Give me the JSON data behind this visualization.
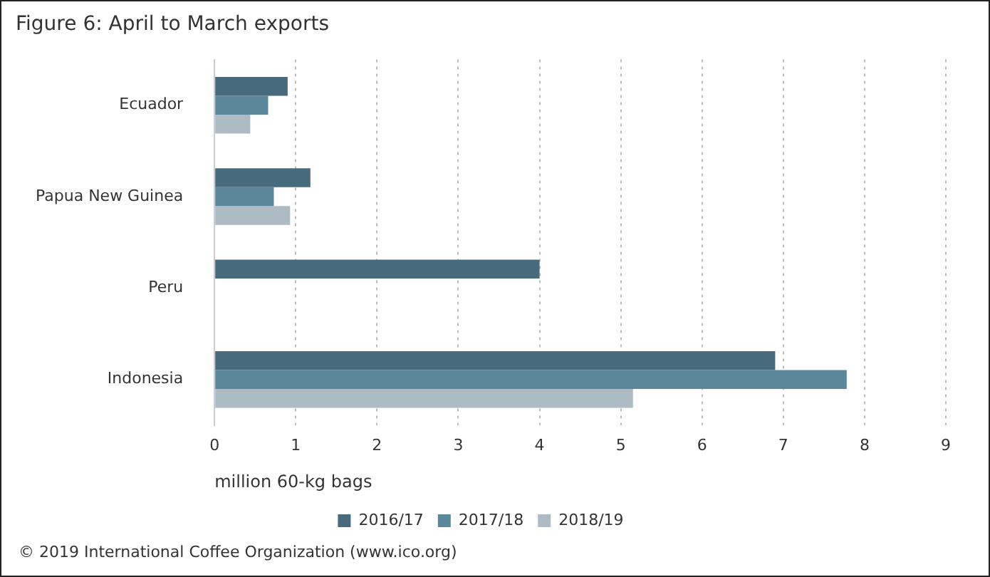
{
  "chart_data": {
    "type": "bar",
    "orientation": "horizontal",
    "title": "Figure 6: April to March exports",
    "xlabel": "million 60-kg bags",
    "categories": [
      "Ecuador",
      "Papua New Guinea",
      "Peru",
      "Indonesia"
    ],
    "series": [
      {
        "name": "2016/17",
        "color": "#476a7c",
        "values": [
          0.9,
          1.18,
          4.0,
          6.9
        ]
      },
      {
        "name": "2017/18",
        "color": "#5a8799",
        "values": [
          0.66,
          0.73,
          null,
          7.78
        ]
      },
      {
        "name": "2018/19",
        "color": "#adbcc4",
        "values": [
          0.44,
          0.93,
          null,
          5.15
        ]
      }
    ],
    "xlim": [
      0,
      9
    ],
    "xticks": [
      0,
      1,
      2,
      3,
      4,
      5,
      6,
      7,
      8,
      9
    ],
    "grid": "x",
    "legend": "bottom",
    "annotations": [
      "© 2019 International Coffee Organization (www.ico.org)"
    ]
  }
}
